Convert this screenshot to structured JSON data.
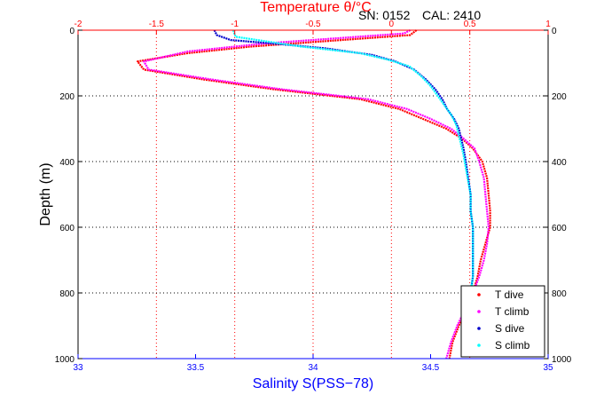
{
  "header": {
    "serial": "SN: 0152",
    "calibration": "CAL: 2410"
  },
  "chart_data": {
    "type": "line",
    "top_axis": {
      "label": "Temperature θ/°C",
      "color": "#ff0000",
      "range": [
        -2,
        1
      ],
      "ticks": [
        "-2",
        "-1.5",
        "-1",
        "-0.5",
        "0",
        "0.5",
        "1"
      ]
    },
    "bottom_axis": {
      "label": "Salinity S(PSS−78)",
      "color": "#0000ff",
      "range": [
        33,
        35
      ],
      "ticks": [
        "33",
        "33.5",
        "34",
        "34.5",
        "35"
      ]
    },
    "y_axis": {
      "label": "Depth (m)",
      "range": [
        0,
        1000
      ],
      "inverted": true,
      "ticks": [
        "0",
        "200",
        "400",
        "600",
        "800",
        "1000"
      ]
    },
    "grid": true,
    "grid_color": "#ff0000",
    "legend_position": "bottom-right",
    "series": [
      {
        "name": "T dive",
        "axis": "temperature",
        "color": "#ff0000",
        "points": [
          [
            0.16,
            0
          ],
          [
            0.12,
            15
          ],
          [
            -0.9,
            50
          ],
          [
            -1.3,
            70
          ],
          [
            -1.62,
            95
          ],
          [
            -1.58,
            120
          ],
          [
            -1.2,
            150
          ],
          [
            -0.75,
            180
          ],
          [
            -0.2,
            210
          ],
          [
            0.05,
            240
          ],
          [
            0.2,
            270
          ],
          [
            0.35,
            300
          ],
          [
            0.45,
            330
          ],
          [
            0.52,
            360
          ],
          [
            0.58,
            400
          ],
          [
            0.61,
            450
          ],
          [
            0.62,
            500
          ],
          [
            0.63,
            550
          ],
          [
            0.63,
            600
          ],
          [
            0.6,
            650
          ],
          [
            0.57,
            700
          ],
          [
            0.55,
            750
          ],
          [
            0.52,
            800
          ],
          [
            0.48,
            850
          ],
          [
            0.43,
            900
          ],
          [
            0.39,
            950
          ],
          [
            0.37,
            1000
          ]
        ]
      },
      {
        "name": "T climb",
        "axis": "temperature",
        "color": "#ff00ff",
        "points": [
          [
            0.12,
            0
          ],
          [
            0.08,
            10
          ],
          [
            -0.8,
            40
          ],
          [
            -1.3,
            65
          ],
          [
            -1.58,
            95
          ],
          [
            -1.55,
            120
          ],
          [
            -1.15,
            150
          ],
          [
            -0.7,
            180
          ],
          [
            -0.15,
            210
          ],
          [
            0.1,
            240
          ],
          [
            0.25,
            270
          ],
          [
            0.38,
            300
          ],
          [
            0.46,
            330
          ],
          [
            0.53,
            360
          ],
          [
            0.56,
            400
          ],
          [
            0.59,
            450
          ],
          [
            0.6,
            500
          ],
          [
            0.61,
            550
          ],
          [
            0.62,
            600
          ],
          [
            0.61,
            650
          ],
          [
            0.59,
            700
          ],
          [
            0.56,
            750
          ],
          [
            0.52,
            800
          ],
          [
            0.47,
            850
          ],
          [
            0.42,
            900
          ],
          [
            0.38,
            950
          ],
          [
            0.35,
            1000
          ]
        ]
      },
      {
        "name": "S dive",
        "axis": "salinity",
        "color": "#0000cc",
        "points": [
          [
            33.58,
            0
          ],
          [
            33.59,
            15
          ],
          [
            33.65,
            30
          ],
          [
            33.85,
            42
          ],
          [
            34.05,
            55
          ],
          [
            34.25,
            75
          ],
          [
            34.35,
            95
          ],
          [
            34.43,
            120
          ],
          [
            34.48,
            150
          ],
          [
            34.52,
            180
          ],
          [
            34.55,
            210
          ],
          [
            34.57,
            240
          ],
          [
            34.6,
            270
          ],
          [
            34.62,
            300
          ],
          [
            34.63,
            330
          ],
          [
            34.64,
            360
          ],
          [
            34.65,
            400
          ],
          [
            34.66,
            450
          ],
          [
            34.67,
            500
          ],
          [
            34.67,
            550
          ],
          [
            34.68,
            600
          ],
          [
            34.68,
            650
          ],
          [
            34.68,
            700
          ],
          [
            34.68,
            750
          ],
          [
            34.67,
            800
          ],
          [
            34.66,
            850
          ],
          [
            34.65,
            900
          ]
        ]
      },
      {
        "name": "S climb",
        "axis": "salinity",
        "color": "#00ffff",
        "points": [
          [
            33.66,
            0
          ],
          [
            33.67,
            20
          ],
          [
            33.95,
            50
          ],
          [
            34.2,
            70
          ],
          [
            34.32,
            90
          ],
          [
            34.41,
            110
          ],
          [
            34.46,
            140
          ],
          [
            34.5,
            170
          ],
          [
            34.53,
            200
          ],
          [
            34.56,
            230
          ],
          [
            34.59,
            260
          ],
          [
            34.61,
            290
          ],
          [
            34.62,
            320
          ],
          [
            34.63,
            350
          ],
          [
            34.64,
            380
          ],
          [
            34.65,
            420
          ],
          [
            34.66,
            460
          ],
          [
            34.67,
            500
          ],
          [
            34.67,
            550
          ],
          [
            34.68,
            600
          ],
          [
            34.68,
            650
          ],
          [
            34.68,
            700
          ],
          [
            34.68,
            750
          ],
          [
            34.67,
            800
          ]
        ]
      }
    ]
  }
}
